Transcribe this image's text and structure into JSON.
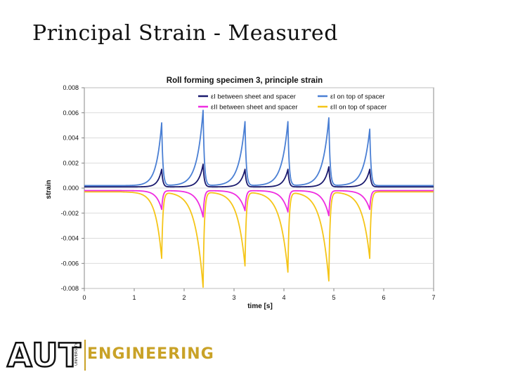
{
  "slide": {
    "title": "Principal Strain - Measured"
  },
  "logo": {
    "primary": "AUT",
    "secondary": "UNIVERSITY",
    "department": "ENGINEERING",
    "accent_color": "#c9a227"
  },
  "chart_data": {
    "type": "line",
    "title": "Roll forming specimen 3, principle strain",
    "xlabel": "time [s]",
    "ylabel": "strain",
    "xlim": [
      0,
      7
    ],
    "ylim": [
      -0.008,
      0.008
    ],
    "xticks": [
      0,
      1,
      2,
      3,
      4,
      5,
      6,
      7
    ],
    "xtick_labels": [
      "0",
      "1",
      "2",
      "3",
      "4",
      "5",
      "6",
      "7"
    ],
    "yticks": [
      0.008,
      0.006,
      0.004,
      0.002,
      0.0,
      -0.002,
      -0.004,
      -0.006,
      -0.008
    ],
    "ytick_labels": [
      "0.008",
      "0.006",
      "0.004",
      "0.002",
      "0.000",
      "-0.002",
      "-0.004",
      "-0.006",
      "-0.008"
    ],
    "grid": true,
    "legend_position": "top-right",
    "series": [
      {
        "name": "εI  between sheet and spacer",
        "color": "#1a1a6e",
        "baseline": 0.0001,
        "peaks": [
          {
            "t": 1.55,
            "v": 0.0015,
            "rise": 0.22
          },
          {
            "t": 2.38,
            "v": 0.0019,
            "rise": 0.25
          },
          {
            "t": 3.22,
            "v": 0.0015,
            "rise": 0.25
          },
          {
            "t": 4.08,
            "v": 0.0015,
            "rise": 0.25
          },
          {
            "t": 4.9,
            "v": 0.0017,
            "rise": 0.25
          },
          {
            "t": 5.72,
            "v": 0.0015,
            "rise": 0.25
          }
        ]
      },
      {
        "name": "εI  on top of spacer",
        "color": "#4a7fd4",
        "baseline": 0.0002,
        "peaks": [
          {
            "t": 1.55,
            "v": 0.0052,
            "rise": 0.3
          },
          {
            "t": 2.38,
            "v": 0.0062,
            "rise": 0.35
          },
          {
            "t": 3.22,
            "v": 0.0053,
            "rise": 0.35
          },
          {
            "t": 4.08,
            "v": 0.0053,
            "rise": 0.35
          },
          {
            "t": 4.9,
            "v": 0.0056,
            "rise": 0.35
          },
          {
            "t": 5.72,
            "v": 0.0047,
            "rise": 0.35
          }
        ]
      },
      {
        "name": "εII  between sheet and spacer",
        "color": "#ee2de0",
        "baseline": -0.0002,
        "peaks": [
          {
            "t": 1.55,
            "v": -0.0017,
            "rise": 0.3
          },
          {
            "t": 2.38,
            "v": -0.0023,
            "rise": 0.35
          },
          {
            "t": 3.22,
            "v": -0.0018,
            "rise": 0.35
          },
          {
            "t": 4.08,
            "v": -0.0019,
            "rise": 0.35
          },
          {
            "t": 4.9,
            "v": -0.0022,
            "rise": 0.35
          },
          {
            "t": 5.72,
            "v": -0.0017,
            "rise": 0.35
          }
        ]
      },
      {
        "name": "εII  on top of spacer",
        "color": "#f5c518",
        "baseline": -0.0003,
        "peaks": [
          {
            "t": 1.55,
            "v": -0.0056,
            "rise": 0.35
          },
          {
            "t": 2.38,
            "v": -0.0079,
            "rise": 0.45
          },
          {
            "t": 3.22,
            "v": -0.0062,
            "rise": 0.42
          },
          {
            "t": 4.08,
            "v": -0.0067,
            "rise": 0.45
          },
          {
            "t": 4.9,
            "v": -0.0074,
            "rise": 0.45
          },
          {
            "t": 5.72,
            "v": -0.0056,
            "rise": 0.42
          }
        ]
      }
    ]
  }
}
